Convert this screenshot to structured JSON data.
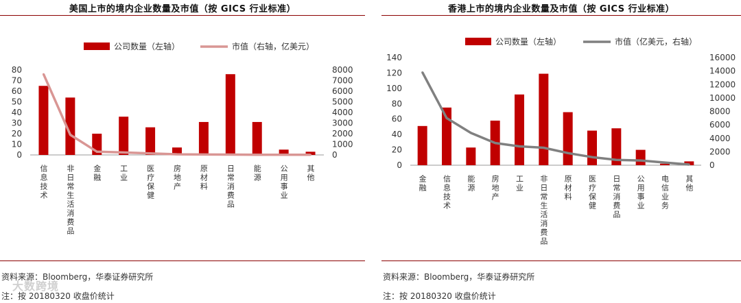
{
  "watermark": "大数跨境",
  "charts": [
    {
      "title": "美国上市的境内企业数量及市值（按 GICS 行业标准）",
      "source": "资料来源：Bloomberg，华泰证券研究所",
      "note": "注：按 20180320 收盘价统计"
    },
    {
      "title": "香港上市的境内企业数量及市值（按 GICS 行业标准）",
      "source": "资料来源：Bloomberg，华泰证券研究所",
      "note": "注：按 20180320 收盘价统计"
    }
  ],
  "chart_data": [
    {
      "type": "bar",
      "title": "美国上市的境内企业数量及市值（按 GICS 行业标准）",
      "categories": [
        "信息技术",
        "非日常生活消费品",
        "金融",
        "工业",
        "医疗保健",
        "房地产",
        "原材料",
        "日常消费品",
        "能源",
        "公用事业",
        "其他"
      ],
      "series": [
        {
          "name": "公司数量（左轴）",
          "type": "bar",
          "axis": "left",
          "color": "#c00000",
          "values": [
            65,
            54,
            20,
            36,
            26,
            7,
            31,
            76,
            31,
            5,
            3
          ]
        },
        {
          "name": "市值（右轴，亿美元）",
          "type": "line",
          "axis": "right",
          "color": "#d99694",
          "values": [
            7600,
            1900,
            300,
            230,
            150,
            60,
            40,
            30,
            20,
            20,
            10
          ]
        }
      ],
      "left_axis": {
        "min": 0,
        "max": 80,
        "step": 10
      },
      "right_axis": {
        "min": 0,
        "max": 8000,
        "step": 1000
      },
      "legend": "top",
      "grid": false
    },
    {
      "type": "bar",
      "title": "香港上市的境内企业数量及市值（按 GICS 行业标准）",
      "categories": [
        "金融",
        "信息技术",
        "能源",
        "房地产",
        "工业",
        "非日常生活消费品",
        "原材料",
        "医疗保健",
        "日常消费品",
        "公用事业",
        "电信业务",
        "其他"
      ],
      "series": [
        {
          "name": "公司数量（左轴）",
          "type": "bar",
          "axis": "left",
          "color": "#c00000",
          "values": [
            51,
            75,
            23,
            58,
            92,
            119,
            69,
            45,
            48,
            20,
            2,
            5
          ]
        },
        {
          "name": "市值（亿美元，右轴）",
          "type": "line",
          "axis": "right",
          "color": "#808080",
          "values": [
            13800,
            7000,
            4800,
            3300,
            2800,
            2600,
            1800,
            1200,
            800,
            700,
            400,
            100
          ]
        }
      ],
      "left_axis": {
        "min": 0,
        "max": 140,
        "step": 20
      },
      "right_axis": {
        "min": 0,
        "max": 16000,
        "step": 2000
      },
      "legend": "top",
      "grid": false
    }
  ]
}
